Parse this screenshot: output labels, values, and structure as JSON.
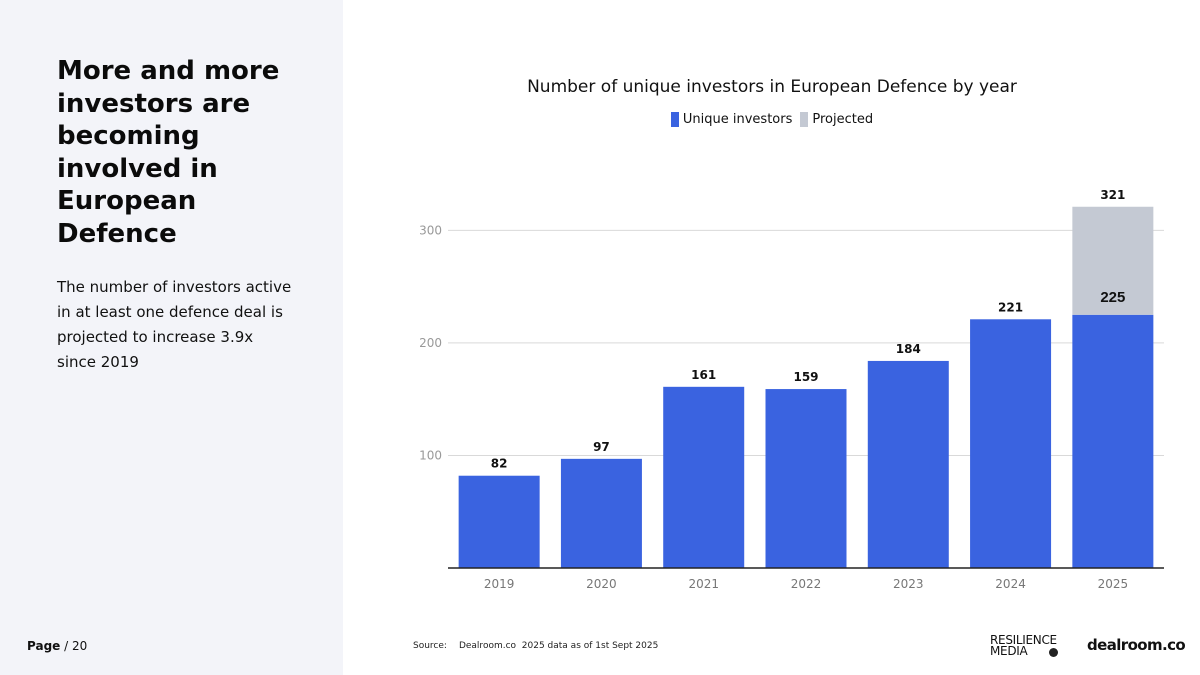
{
  "headline": "More and more investors are becoming involved in European Defence",
  "subtext": "The number of investors active in at least one defence deal is projected to increase 3.9x since 2019",
  "footer": {
    "page_label": "Page",
    "page_number": "/ 20",
    "source_label": "Source:",
    "source_name": "Dealroom.co",
    "source_note": "2025 data as of 1st Sept 2025"
  },
  "logos": {
    "resilience_line1": "RESILIENCE",
    "resilience_line2": "MEDIA",
    "dealroom": "dealroom.co"
  },
  "colors": {
    "unique_investors": "#3a63e0",
    "projected": "#c4c9d3",
    "axis": "#222222",
    "grid": "#d9d9d9"
  },
  "chart_data": {
    "type": "bar",
    "title": "Number of unique investors in European Defence by year",
    "xlabel": "",
    "ylabel": "",
    "categories": [
      "2019",
      "2020",
      "2021",
      "2022",
      "2023",
      "2024",
      "2025"
    ],
    "series": [
      {
        "name": "Unique investors",
        "values": [
          82,
          97,
          161,
          159,
          184,
          221,
          225
        ]
      },
      {
        "name": "Projected",
        "values": [
          0,
          0,
          0,
          0,
          0,
          0,
          96
        ]
      }
    ],
    "stacked": true,
    "totals": [
      82,
      97,
      161,
      159,
      184,
      221,
      321
    ],
    "inner_label_2025": "225",
    "yticks": [
      100,
      200,
      300
    ],
    "ylim": [
      0,
      335
    ],
    "grid": true,
    "legend_position": "top-center"
  }
}
